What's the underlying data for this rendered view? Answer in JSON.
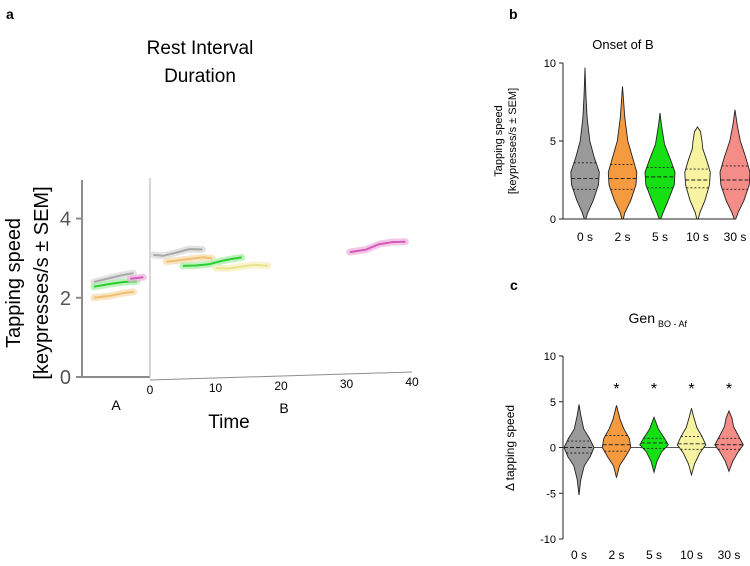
{
  "panel_letters": {
    "a": "a",
    "b": "b",
    "c": "c"
  },
  "chart_data": [
    {
      "id": "a",
      "type": "line",
      "title": [
        "Rest Interval",
        "Duration"
      ],
      "ylabel": [
        "Tapping speed",
        "[keypresses/s ± SEM]"
      ],
      "xlabel": "Time",
      "section_labels": [
        "A",
        "B"
      ],
      "yticks": [
        "0",
        "2",
        "4"
      ],
      "xticks": [
        "0",
        "10",
        "20",
        "30",
        "40"
      ],
      "ylim": [
        0,
        5
      ],
      "series": [
        {
          "name": "0 s",
          "color": "#a8a8a8",
          "band": "#dadada",
          "A": [
            [
              -8.5,
              2.4
            ],
            [
              -6,
              2.5
            ],
            [
              -4,
              2.58
            ],
            [
              -2.5,
              2.62
            ]
          ],
          "B": [
            [
              0.5,
              3.08
            ],
            [
              2,
              3.05
            ],
            [
              4,
              3.12
            ],
            [
              6,
              3.2
            ],
            [
              8,
              3.18
            ]
          ]
        },
        {
          "name": "2 s",
          "color": "#f0c070",
          "band": "#f5dcb0",
          "A": [
            [
              -8.5,
              2.0
            ],
            [
              -6,
              2.05
            ],
            [
              -4,
              2.12
            ],
            [
              -2.5,
              2.15
            ]
          ],
          "B": [
            [
              2.5,
              2.9
            ],
            [
              4,
              2.92
            ],
            [
              6,
              2.95
            ],
            [
              8,
              2.98
            ],
            [
              9.5,
              2.95
            ]
          ]
        },
        {
          "name": "5 s",
          "color": "#2ecc2e",
          "band": "#a8eea8",
          "A": [
            [
              -8.5,
              2.28
            ],
            [
              -6,
              2.35
            ],
            [
              -4,
              2.4
            ],
            [
              -2,
              2.42
            ]
          ],
          "B": [
            [
              5,
              2.78
            ],
            [
              7,
              2.78
            ],
            [
              9,
              2.8
            ],
            [
              11,
              2.88
            ],
            [
              12.5,
              2.92
            ],
            [
              14,
              2.95
            ]
          ]
        },
        {
          "name": "10 s",
          "color": "#ece48a",
          "band": "#f5f0c0",
          "A": [],
          "B": [
            [
              10,
              2.7
            ],
            [
              12,
              2.68
            ],
            [
              14,
              2.72
            ],
            [
              16,
              2.75
            ],
            [
              18,
              2.72
            ]
          ]
        },
        {
          "name": "30 s",
          "color": "#d85ab8",
          "band": "#eeb6de",
          "A": [
            [
              -3,
              2.48
            ],
            [
              -1,
              2.52
            ]
          ],
          "B": [
            [
              30.5,
              3.0
            ],
            [
              33,
              3.05
            ],
            [
              35,
              3.18
            ],
            [
              37,
              3.22
            ],
            [
              39,
              3.22
            ]
          ]
        }
      ]
    },
    {
      "id": "b",
      "type": "violin",
      "title": "Onset of B",
      "ylabel": [
        "Tapping speed",
        "[keypresses/s ± SEM]"
      ],
      "categories": [
        "0 s",
        "2 s",
        "5 s",
        "10 s",
        "30 s"
      ],
      "ylim": [
        0,
        10
      ],
      "yticks": [
        "0",
        "5",
        "10"
      ],
      "violins": [
        {
          "color": "#9a9a9a",
          "min": 0,
          "max": 9.7,
          "q1": 1.9,
          "median": 2.6,
          "q3": 3.6,
          "profile": [
            [
              0,
              0.05
            ],
            [
              0.4,
              0.18
            ],
            [
              1.2,
              0.55
            ],
            [
              2.2,
              0.9
            ],
            [
              3.0,
              0.95
            ],
            [
              4.0,
              0.6
            ],
            [
              5.0,
              0.32
            ],
            [
              6.5,
              0.14
            ],
            [
              8.0,
              0.06
            ],
            [
              9.7,
              0
            ]
          ]
        },
        {
          "color": "#f59a3e",
          "min": 0,
          "max": 8.5,
          "q1": 1.9,
          "median": 2.6,
          "q3": 3.5,
          "profile": [
            [
              0,
              0.05
            ],
            [
              0.4,
              0.15
            ],
            [
              1.2,
              0.55
            ],
            [
              2.2,
              0.9
            ],
            [
              3.0,
              0.95
            ],
            [
              4.0,
              0.65
            ],
            [
              5.0,
              0.35
            ],
            [
              6.5,
              0.15
            ],
            [
              8.5,
              0
            ]
          ]
        },
        {
          "color": "#14e014",
          "min": 0,
          "max": 6.8,
          "q1": 2.0,
          "median": 2.7,
          "q3": 3.3,
          "profile": [
            [
              0,
              0.05
            ],
            [
              0.4,
              0.2
            ],
            [
              1.2,
              0.55
            ],
            [
              2.2,
              0.95
            ],
            [
              3.0,
              1.0
            ],
            [
              3.8,
              0.7
            ],
            [
              4.8,
              0.3
            ],
            [
              6.0,
              0.1
            ],
            [
              6.8,
              0
            ]
          ]
        },
        {
          "color": "#f8f3a0",
          "min": 0,
          "max": 5.9,
          "q1": 2.0,
          "median": 2.5,
          "q3": 3.2,
          "profile": [
            [
              0,
              0.05
            ],
            [
              0.4,
              0.15
            ],
            [
              1.2,
              0.5
            ],
            [
              2.2,
              0.8
            ],
            [
              3.0,
              0.85
            ],
            [
              3.8,
              0.6
            ],
            [
              4.5,
              0.35
            ],
            [
              5.0,
              0.3
            ],
            [
              5.6,
              0.2
            ],
            [
              5.9,
              0
            ]
          ]
        },
        {
          "color": "#f48c88",
          "min": 0,
          "max": 7.0,
          "q1": 1.9,
          "median": 2.5,
          "q3": 3.4,
          "profile": [
            [
              0,
              0.05
            ],
            [
              0.4,
              0.2
            ],
            [
              1.2,
              0.6
            ],
            [
              2.2,
              0.95
            ],
            [
              3.0,
              1.0
            ],
            [
              4.0,
              0.7
            ],
            [
              5.0,
              0.35
            ],
            [
              6.0,
              0.15
            ],
            [
              7.0,
              0
            ]
          ]
        }
      ]
    },
    {
      "id": "c",
      "type": "violin",
      "title_main": "Gen",
      "title_sub": "BO - Af",
      "ylabel": [
        "Δ tapping speed"
      ],
      "categories": [
        "0 s",
        "2 s",
        "5 s",
        "10 s",
        "30 s"
      ],
      "ylim": [
        -10,
        10
      ],
      "yticks": [
        "-10",
        "-5",
        "0",
        "5",
        "10"
      ],
      "significance": [
        "",
        "*",
        "*",
        "*",
        "*"
      ],
      "violins": [
        {
          "color": "#9a9a9a",
          "min": -5.2,
          "max": 4.7,
          "q1": -0.6,
          "median": 0.0,
          "q3": 0.7,
          "profile": [
            [
              -5.2,
              0
            ],
            [
              -3.5,
              0.12
            ],
            [
              -2,
              0.35
            ],
            [
              -1,
              0.75
            ],
            [
              0,
              1.0
            ],
            [
              1,
              0.7
            ],
            [
              2,
              0.32
            ],
            [
              3.5,
              0.12
            ],
            [
              4.7,
              0
            ]
          ]
        },
        {
          "color": "#f59a3e",
          "min": -3.3,
          "max": 4.6,
          "q1": -0.4,
          "median": 0.3,
          "q3": 1.3,
          "profile": [
            [
              -3.3,
              0
            ],
            [
              -2,
              0.2
            ],
            [
              -1,
              0.6
            ],
            [
              0,
              0.95
            ],
            [
              1,
              0.85
            ],
            [
              2,
              0.5
            ],
            [
              3,
              0.25
            ],
            [
              4.6,
              0
            ]
          ]
        },
        {
          "color": "#14e014",
          "min": -2.7,
          "max": 3.3,
          "q1": -0.1,
          "median": 0.5,
          "q3": 1.0,
          "profile": [
            [
              -2.7,
              0
            ],
            [
              -1.5,
              0.2
            ],
            [
              -0.5,
              0.5
            ],
            [
              0.3,
              0.95
            ],
            [
              1,
              0.7
            ],
            [
              2,
              0.3
            ],
            [
              3.3,
              0
            ]
          ]
        },
        {
          "color": "#f8f3a0",
          "min": -3.0,
          "max": 4.3,
          "q1": -0.2,
          "median": 0.4,
          "q3": 1.2,
          "profile": [
            [
              -3.0,
              0
            ],
            [
              -1.8,
              0.2
            ],
            [
              -0.6,
              0.55
            ],
            [
              0.3,
              0.95
            ],
            [
              1.2,
              0.7
            ],
            [
              2.2,
              0.35
            ],
            [
              3.5,
              0.12
            ],
            [
              4.3,
              0
            ]
          ]
        },
        {
          "color": "#f48c88",
          "min": -2.6,
          "max": 4.0,
          "q1": -0.2,
          "median": 0.3,
          "q3": 1.0,
          "profile": [
            [
              -2.6,
              0
            ],
            [
              -1.5,
              0.25
            ],
            [
              -0.5,
              0.6
            ],
            [
              0.3,
              0.95
            ],
            [
              1.2,
              0.65
            ],
            [
              2.3,
              0.3
            ],
            [
              3.2,
              0.2
            ],
            [
              4.0,
              0
            ]
          ]
        }
      ]
    }
  ]
}
